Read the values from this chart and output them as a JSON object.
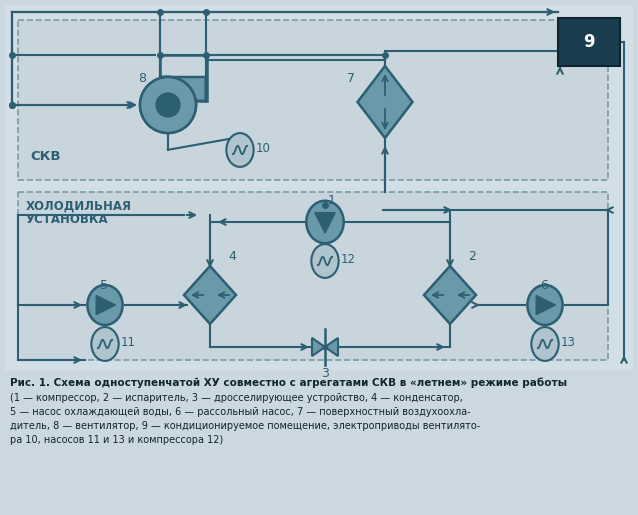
{
  "bg_outer": "#ccd8df",
  "bg_inner": "#c4d2da",
  "bg_skv": "#cad5dc",
  "bg_khu": "#cad5dc",
  "border_dashed": "#7a9aaa",
  "cc": "#6a9aaa",
  "cd": "#2d5f72",
  "lc": "#2d5f72",
  "room_color": "#1a3d50",
  "label_skv": "СКВ",
  "label_khu1": "ХОЛОДИЛЬНАЯ",
  "label_khu2": "УСТАНОВКА",
  "cap1": "Рис. 1. Схема одноступенчатой ХУ совместно с агрегатами СКВ в «летнем» режиме работы",
  "cap2": "(1 — компрессор, 2 — испаритель, 3 — дросселирующее устройство, 4 — конденсатор,",
  "cap3": "5 — насос охлаждающей воды, 6 — рассольный насос, 7 — поверхностный воздухоохла-",
  "cap4": "дитель, 8 — вентилятор, 9 — кондиционируемое помещение, электроприводы вентилято-",
  "cap5": "ра 10, насосов 11 и 13 и компрессора 12)"
}
